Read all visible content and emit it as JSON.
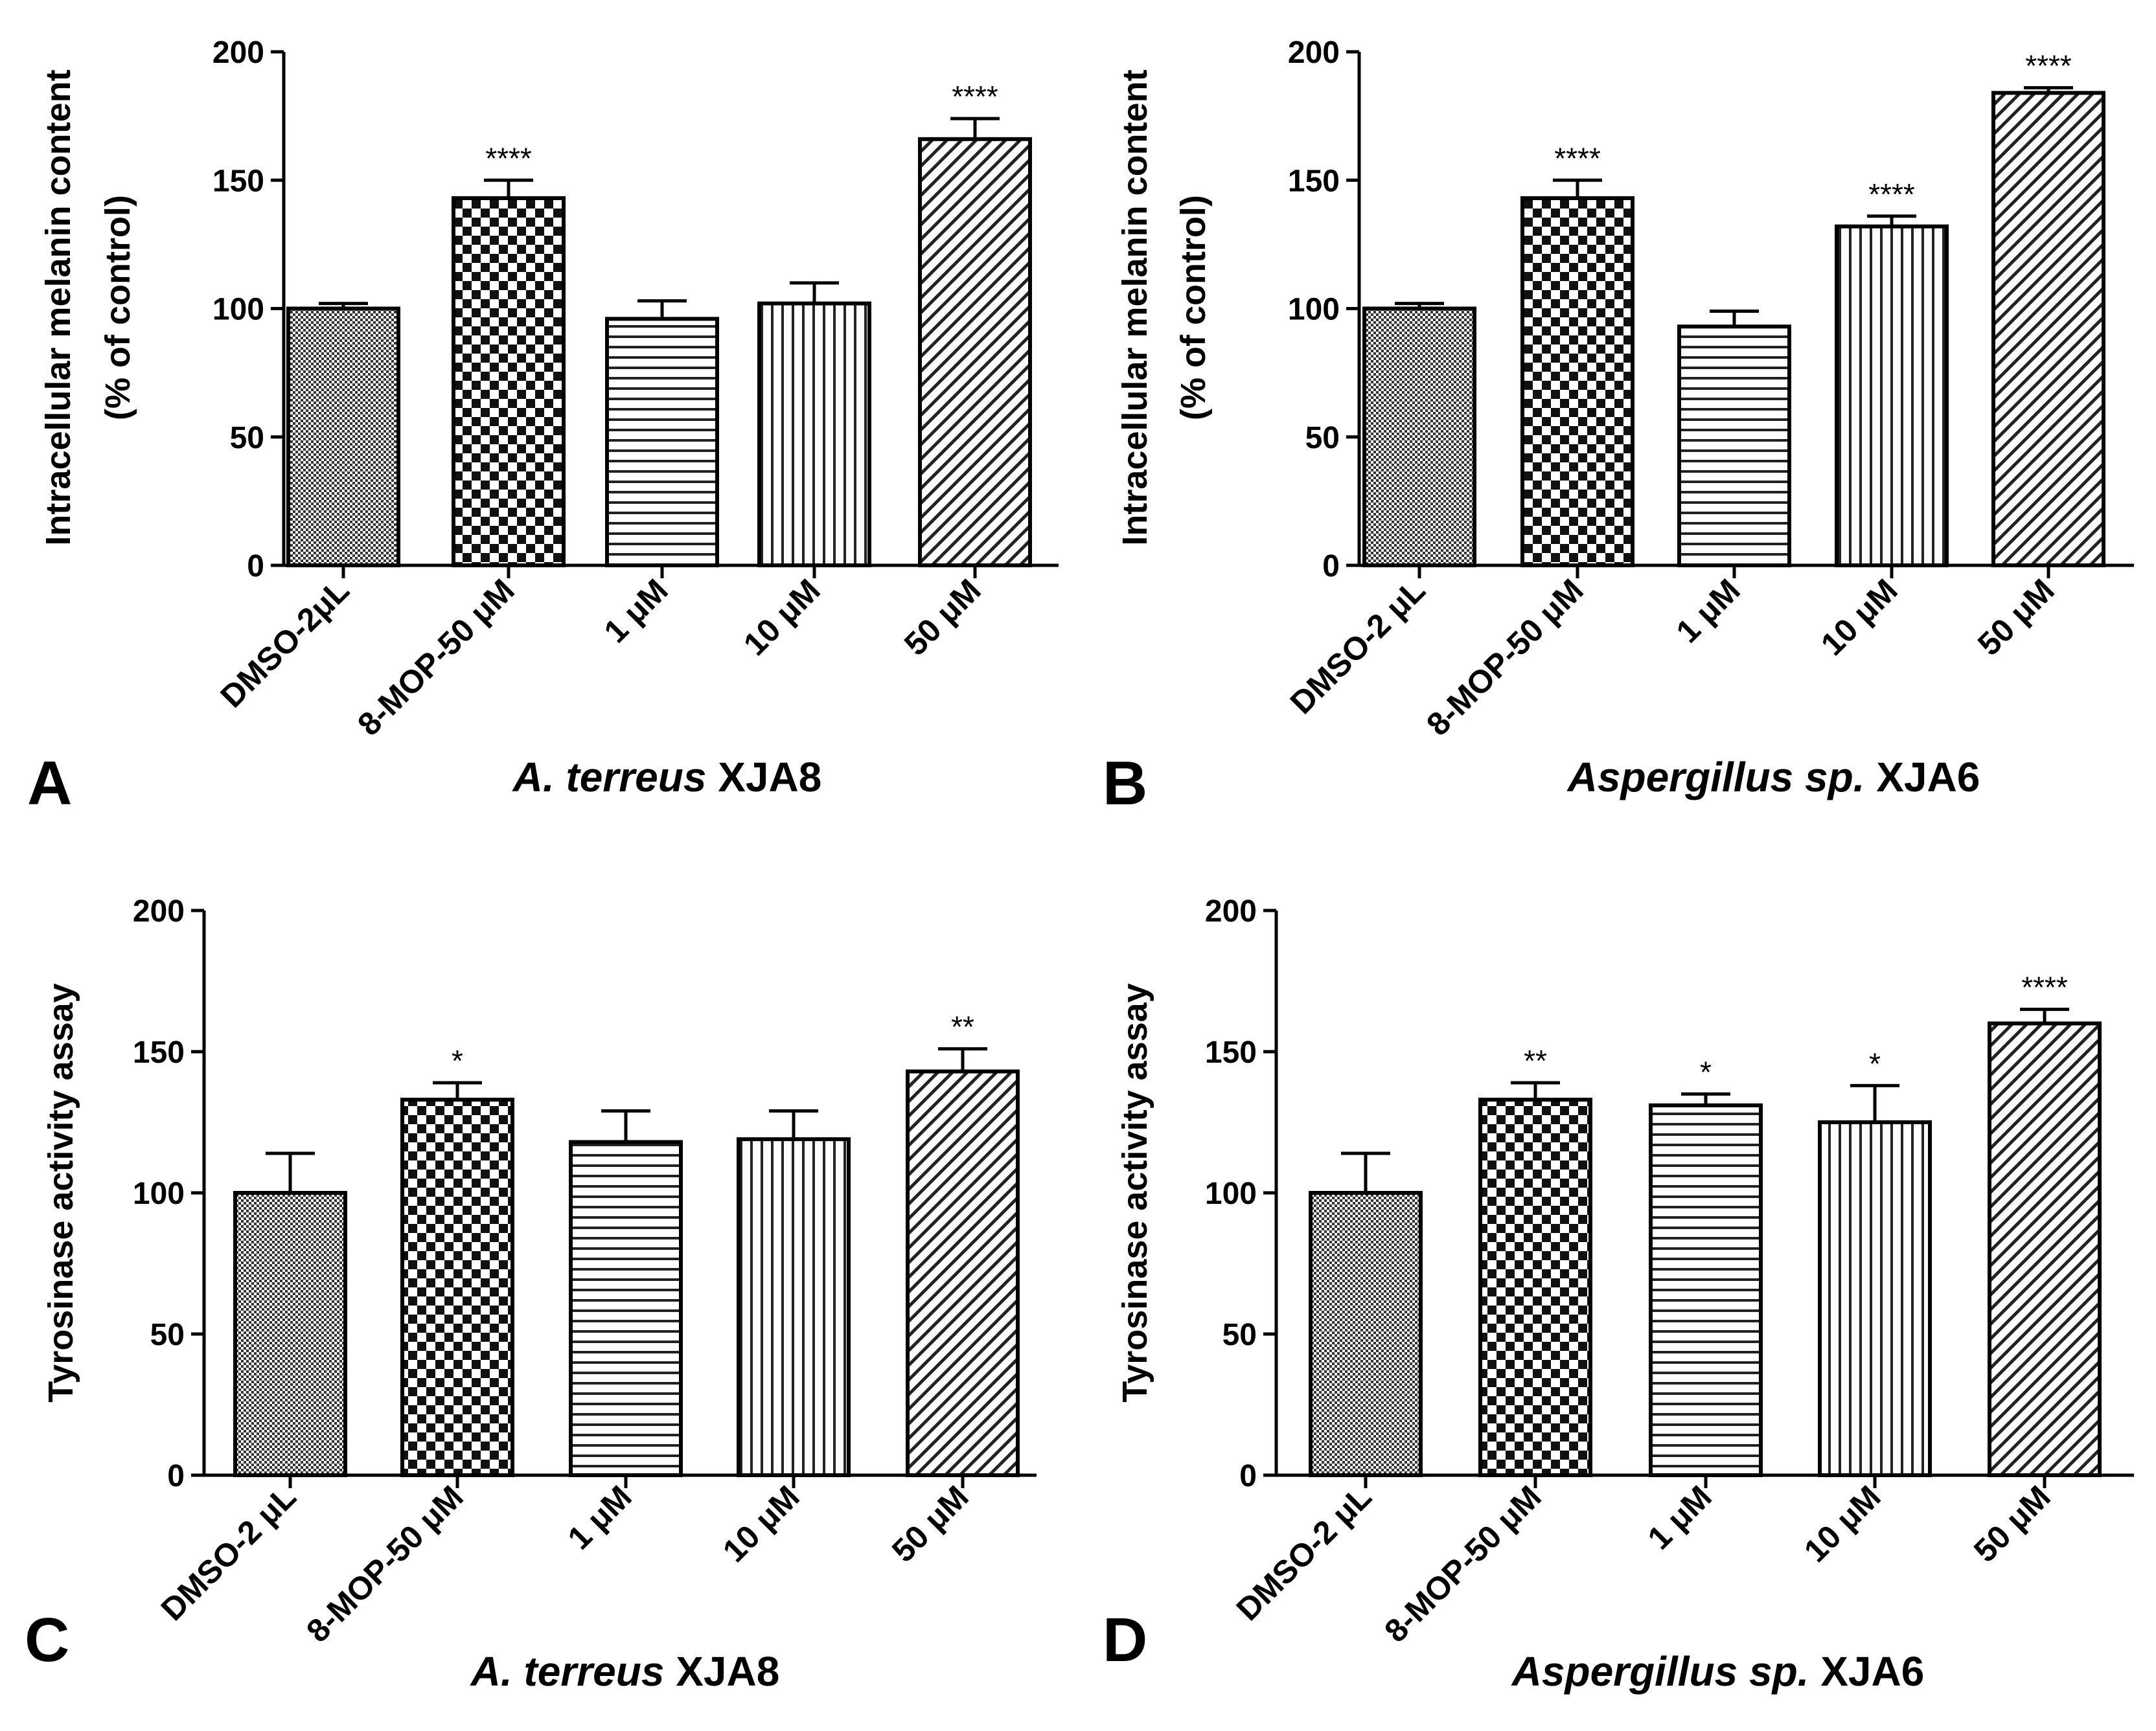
{
  "chart_data": [
    {
      "panel": "A",
      "type": "bar",
      "title_italic": "A. terreus",
      "title_rest": " XJA8",
      "ylabel_lines": [
        "Intracellular melanin content",
        "(% of control)"
      ],
      "xlabel": "",
      "ylim": [
        0,
        200
      ],
      "yticks": [
        0,
        50,
        100,
        150,
        200
      ],
      "categories": [
        "DMSO-2μL",
        "8-MOP-50 μM",
        "1 μM",
        "10 μM",
        "50 μM"
      ],
      "values": [
        100,
        143,
        96,
        102,
        166
      ],
      "errors": [
        2,
        7,
        7,
        8,
        8
      ],
      "significance": [
        "",
        "****",
        "",
        "",
        "****"
      ],
      "patterns": [
        "dense",
        "checker",
        "hlines",
        "vlines",
        "diag"
      ]
    },
    {
      "panel": "B",
      "type": "bar",
      "title_italic": "Aspergillus sp.",
      "title_rest": " XJA6",
      "ylabel_lines": [
        "Intracellular melanin content",
        "(% of control)"
      ],
      "xlabel": "",
      "ylim": [
        0,
        200
      ],
      "yticks": [
        0,
        50,
        100,
        150,
        200
      ],
      "categories": [
        "DMSO-2 μL",
        "8-MOP-50 μM",
        "1 μM",
        "10 μM",
        "50 μM"
      ],
      "values": [
        100,
        143,
        93,
        132,
        184
      ],
      "errors": [
        2,
        7,
        6,
        4,
        2
      ],
      "significance": [
        "",
        "****",
        "",
        "****",
        "****"
      ],
      "patterns": [
        "dense",
        "checker",
        "hlines",
        "vlines",
        "diag"
      ]
    },
    {
      "panel": "C",
      "type": "bar",
      "title_italic": "A. terreus",
      "title_rest": " XJA8",
      "ylabel_lines": [
        "Tyrosinase activity assay"
      ],
      "xlabel": "",
      "ylim": [
        0,
        200
      ],
      "yticks": [
        0,
        50,
        100,
        150,
        200
      ],
      "categories": [
        "DMSO-2 μL",
        "8-MOP-50 μM",
        "1 μM",
        "10 μM",
        "50 μM"
      ],
      "values": [
        100,
        133,
        118,
        119,
        143
      ],
      "errors": [
        14,
        6,
        11,
        10,
        8
      ],
      "significance": [
        "",
        "*",
        "",
        "",
        "**"
      ],
      "patterns": [
        "dense",
        "checker",
        "hlines",
        "vlines",
        "diag"
      ]
    },
    {
      "panel": "D",
      "type": "bar",
      "title_italic": "Aspergillus sp.",
      "title_rest": " XJA6",
      "ylabel_lines": [
        "Tyrosinase activity assay"
      ],
      "xlabel": "",
      "ylim": [
        0,
        200
      ],
      "yticks": [
        0,
        50,
        100,
        150,
        200
      ],
      "categories": [
        "DMSO-2 μL",
        "8-MOP-50 μM",
        "1 μM",
        "10 μM",
        "50  μM"
      ],
      "values": [
        100,
        133,
        131,
        125,
        160
      ],
      "errors": [
        14,
        6,
        4,
        13,
        5
      ],
      "significance": [
        "",
        "**",
        "*",
        "*",
        "****"
      ],
      "patterns": [
        "dense",
        "checker",
        "hlines",
        "vlines",
        "diag"
      ]
    }
  ]
}
